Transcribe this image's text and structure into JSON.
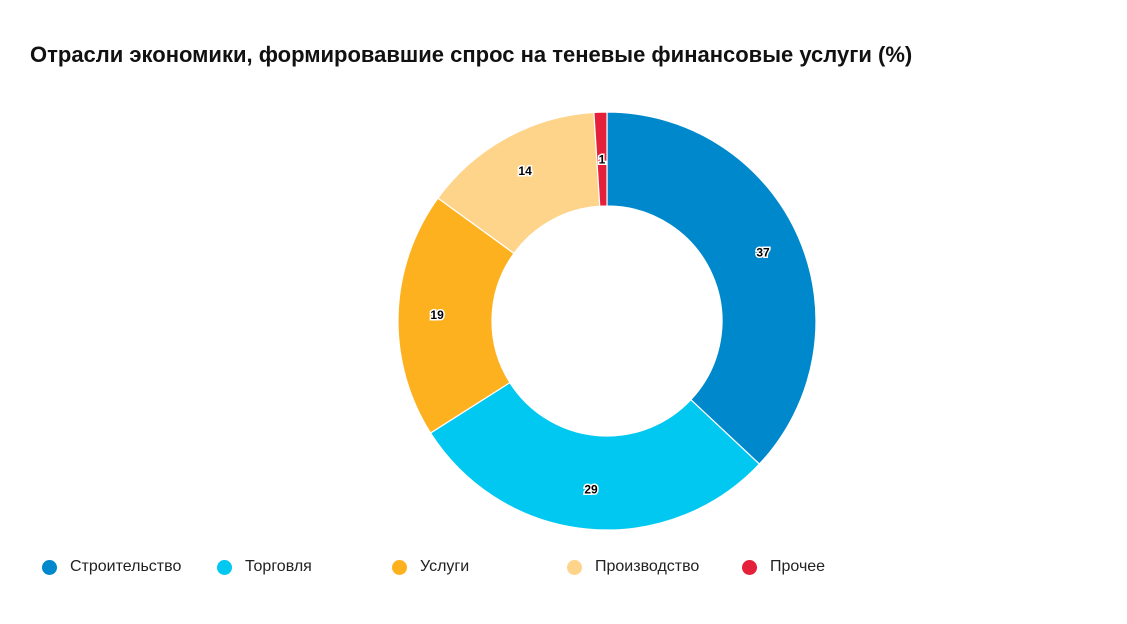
{
  "chart_data": {
    "type": "pie",
    "donut": true,
    "title": "Отрасли экономики, формировавшие спрос на теневые финансовые услуги (%)",
    "categories": [
      "Строительство",
      "Торговля",
      "Услуги",
      "Производство",
      "Прочее"
    ],
    "values": [
      37,
      29,
      19,
      14,
      1
    ],
    "colors": [
      "#0088CC",
      "#00C8F0",
      "#FDB11E",
      "#FED48A",
      "#E4203A"
    ],
    "legend_position": "bottom"
  }
}
